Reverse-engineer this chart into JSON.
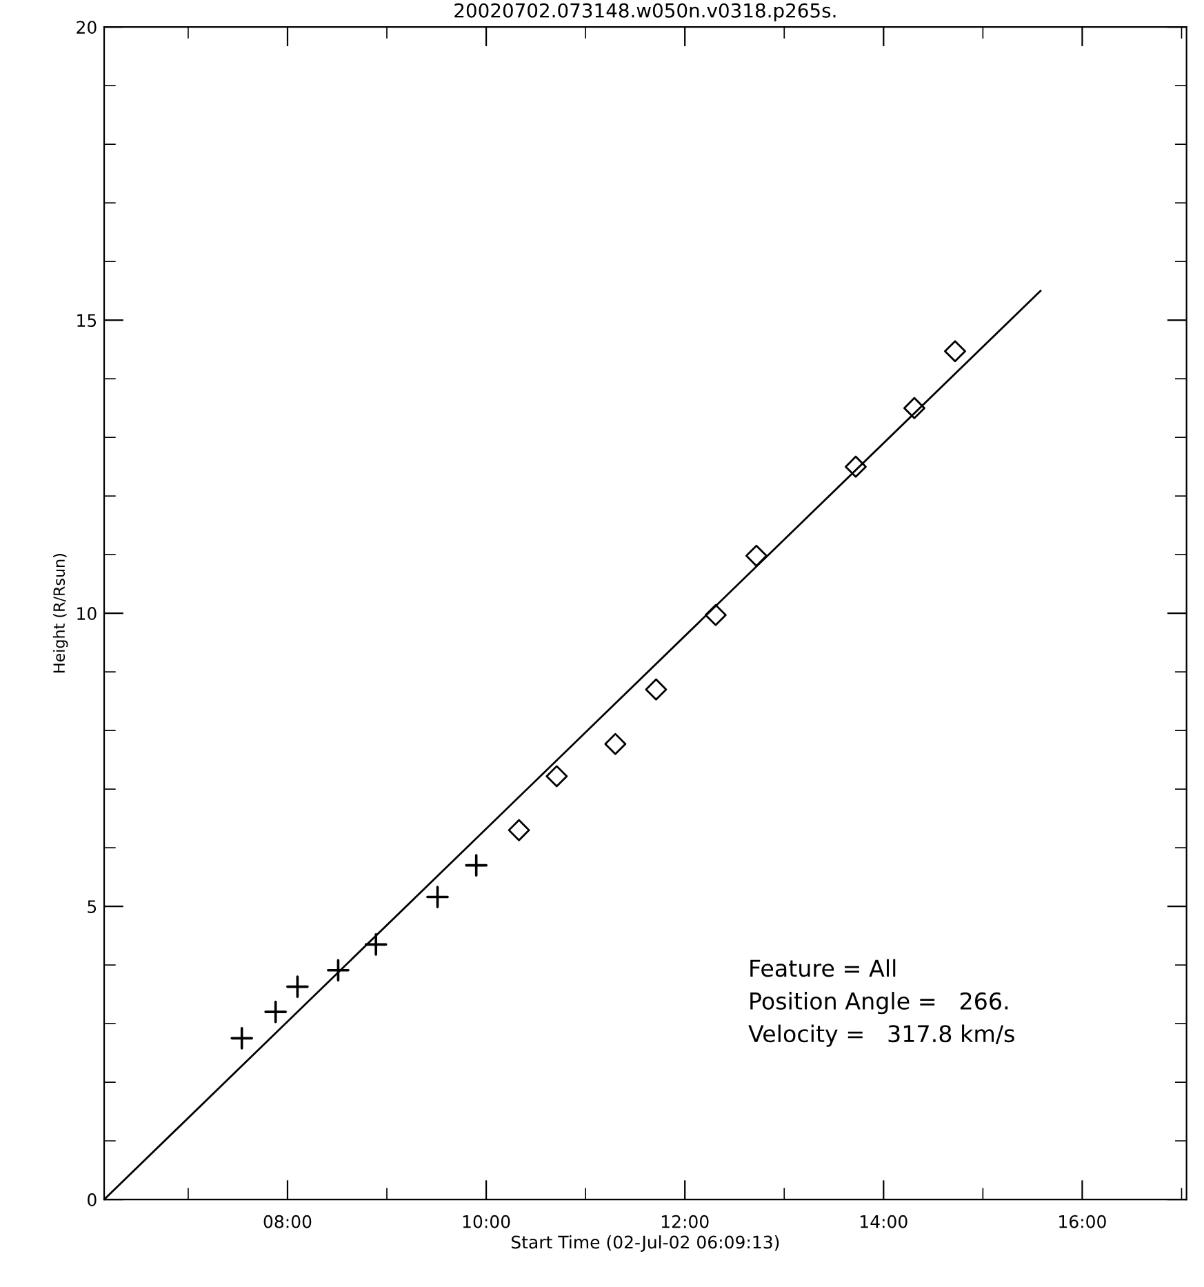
{
  "chart_data": {
    "type": "scatter",
    "title": "20020702.073148.w050n.v0318.p265s.",
    "xlabel": "Start Time (02-Jul-02 06:09:13)",
    "ylabel": "Height (R/Rsun)",
    "series": [
      {
        "marker": "cross",
        "color": "#000000",
        "x": [
          7.54,
          7.88,
          8.1,
          8.51,
          8.89,
          9.51,
          9.9
        ],
        "values": [
          2.75,
          3.2,
          3.63,
          3.91,
          4.35,
          5.16,
          5.7
        ]
      },
      {
        "marker": "diamond",
        "color": "#000000",
        "x": [
          10.33,
          10.71,
          11.3,
          11.71,
          12.31,
          12.72,
          13.72,
          14.31,
          14.72
        ],
        "values": [
          6.3,
          7.22,
          7.77,
          8.7,
          9.97,
          10.98,
          12.5,
          13.5,
          14.47
        ]
      },
      {
        "type": "line",
        "marker": "none",
        "color": "#000000",
        "x": [
          6.154,
          15.58
        ],
        "values": [
          0,
          15.5
        ]
      }
    ],
    "xlim": [
      6.154,
      17.05
    ],
    "xticks": [
      {
        "value": 7,
        "label": null
      },
      {
        "value": 8,
        "label": "08:00"
      },
      {
        "value": 9,
        "label": null
      },
      {
        "value": 10,
        "label": "10:00"
      },
      {
        "value": 11,
        "label": null
      },
      {
        "value": 12,
        "label": "12:00"
      },
      {
        "value": 13,
        "label": null
      },
      {
        "value": 14,
        "label": "14:00"
      },
      {
        "value": 15,
        "label": null
      },
      {
        "value": 16,
        "label": "16:00"
      },
      {
        "value": 17,
        "label": null
      }
    ],
    "ylim": [
      0,
      20
    ],
    "yticks": [
      0,
      {
        "value": 1,
        "label": null
      },
      {
        "value": 2,
        "label": null
      },
      {
        "value": 3,
        "label": null
      },
      {
        "value": 4,
        "label": null
      },
      5,
      {
        "value": 6,
        "label": null
      },
      {
        "value": 7,
        "label": null
      },
      {
        "value": 8,
        "label": null
      },
      {
        "value": 9,
        "label": null
      },
      10,
      {
        "value": 11,
        "label": null
      },
      {
        "value": 12,
        "label": null
      },
      {
        "value": 13,
        "label": null
      },
      {
        "value": 14,
        "label": null
      },
      15,
      {
        "value": 16,
        "label": null
      },
      {
        "value": 17,
        "label": null
      },
      {
        "value": 18,
        "label": null
      },
      {
        "value": 19,
        "label": null
      },
      20
    ],
    "annotations": [
      "Feature = All",
      "Position Angle =   266.",
      "Velocity =   317.8 km/s"
    ],
    "grid": false,
    "legend": false
  }
}
